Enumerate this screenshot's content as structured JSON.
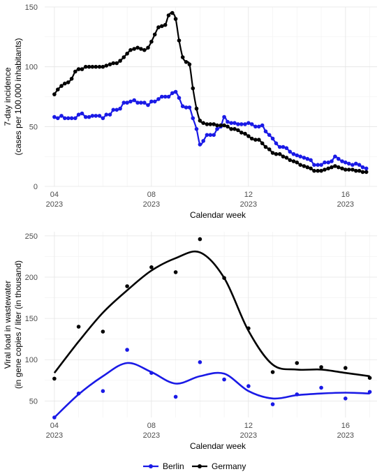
{
  "colors": {
    "Berlin": "#1a1ae6",
    "Germany": "#000000",
    "grid": "#e4e4e4"
  },
  "legend": {
    "items": [
      "Berlin",
      "Germany"
    ],
    "position": "bottom"
  },
  "chart_data": [
    {
      "type": "line",
      "xlabel": "Calendar week",
      "ylabel_line1": "7-day incidence",
      "ylabel_line2": "(cases per 100,000 inhabitants)",
      "xlim": [
        3.6,
        17.3
      ],
      "ylim": [
        0,
        150
      ],
      "x_ticks": [
        {
          "week": 4,
          "label": "04",
          "year": "2023"
        },
        {
          "week": 8,
          "label": "08",
          "year": "2023"
        },
        {
          "week": 12,
          "label": "12",
          "year": "2023"
        },
        {
          "week": 16,
          "label": "16",
          "year": "2023"
        }
      ],
      "y_ticks": [
        0,
        50,
        100,
        150
      ],
      "grid": true,
      "series": [
        {
          "name": "Berlin",
          "color": "#1a1ae6",
          "points": [
            [
              4.0,
              58
            ],
            [
              4.14,
              57
            ],
            [
              4.29,
              59
            ],
            [
              4.43,
              57
            ],
            [
              4.57,
              57
            ],
            [
              4.71,
              57
            ],
            [
              4.86,
              57
            ],
            [
              5.0,
              60
            ],
            [
              5.14,
              61
            ],
            [
              5.29,
              58
            ],
            [
              5.43,
              58
            ],
            [
              5.57,
              59
            ],
            [
              5.71,
              59
            ],
            [
              5.86,
              59
            ],
            [
              6.0,
              57
            ],
            [
              6.14,
              60
            ],
            [
              6.29,
              60
            ],
            [
              6.43,
              64
            ],
            [
              6.57,
              64
            ],
            [
              6.71,
              65
            ],
            [
              6.86,
              70
            ],
            [
              7.0,
              70
            ],
            [
              7.14,
              71
            ],
            [
              7.29,
              72
            ],
            [
              7.43,
              70
            ],
            [
              7.57,
              70
            ],
            [
              7.71,
              70
            ],
            [
              7.86,
              68
            ],
            [
              8.0,
              71
            ],
            [
              8.14,
              71
            ],
            [
              8.29,
              73
            ],
            [
              8.43,
              75
            ],
            [
              8.57,
              75
            ],
            [
              8.71,
              75
            ],
            [
              8.86,
              78
            ],
            [
              9.0,
              79
            ],
            [
              9.14,
              74
            ],
            [
              9.29,
              67
            ],
            [
              9.43,
              66
            ],
            [
              9.57,
              66
            ],
            [
              9.71,
              57
            ],
            [
              9.86,
              48
            ],
            [
              10.0,
              35
            ],
            [
              10.14,
              38
            ],
            [
              10.29,
              43
            ],
            [
              10.43,
              43
            ],
            [
              10.57,
              43
            ],
            [
              10.71,
              48
            ],
            [
              10.86,
              50
            ],
            [
              11.0,
              58
            ],
            [
              11.14,
              54
            ],
            [
              11.29,
              53
            ],
            [
              11.43,
              53
            ],
            [
              11.57,
              52
            ],
            [
              11.71,
              52
            ],
            [
              11.86,
              52
            ],
            [
              12.0,
              53
            ],
            [
              12.14,
              52
            ],
            [
              12.29,
              50
            ],
            [
              12.43,
              50
            ],
            [
              12.57,
              51
            ],
            [
              12.71,
              46
            ],
            [
              12.86,
              43
            ],
            [
              13.0,
              40
            ],
            [
              13.14,
              36
            ],
            [
              13.29,
              33
            ],
            [
              13.43,
              33
            ],
            [
              13.57,
              32
            ],
            [
              13.71,
              29
            ],
            [
              13.86,
              27
            ],
            [
              14.0,
              26
            ],
            [
              14.14,
              25
            ],
            [
              14.29,
              24
            ],
            [
              14.43,
              23
            ],
            [
              14.57,
              22
            ],
            [
              14.71,
              18
            ],
            [
              14.86,
              18
            ],
            [
              15.0,
              18
            ],
            [
              15.14,
              20
            ],
            [
              15.29,
              20
            ],
            [
              15.43,
              21
            ],
            [
              15.57,
              25
            ],
            [
              15.71,
              23
            ],
            [
              15.86,
              21
            ],
            [
              16.0,
              20
            ],
            [
              16.14,
              19
            ],
            [
              16.29,
              18
            ],
            [
              16.43,
              19
            ],
            [
              16.57,
              18
            ],
            [
              16.71,
              16
            ],
            [
              16.86,
              15
            ]
          ]
        },
        {
          "name": "Germany",
          "color": "#000000",
          "points": [
            [
              4.0,
              77
            ],
            [
              4.14,
              81
            ],
            [
              4.29,
              84
            ],
            [
              4.43,
              86
            ],
            [
              4.57,
              87
            ],
            [
              4.71,
              90
            ],
            [
              4.86,
              96
            ],
            [
              5.0,
              98
            ],
            [
              5.14,
              98
            ],
            [
              5.29,
              100
            ],
            [
              5.43,
              100
            ],
            [
              5.57,
              100
            ],
            [
              5.71,
              100
            ],
            [
              5.86,
              100
            ],
            [
              6.0,
              100
            ],
            [
              6.14,
              101
            ],
            [
              6.29,
              102
            ],
            [
              6.43,
              103
            ],
            [
              6.57,
              103
            ],
            [
              6.71,
              105
            ],
            [
              6.86,
              108
            ],
            [
              7.0,
              111
            ],
            [
              7.14,
              114
            ],
            [
              7.29,
              115
            ],
            [
              7.43,
              116
            ],
            [
              7.57,
              115
            ],
            [
              7.71,
              114
            ],
            [
              7.86,
              116
            ],
            [
              8.0,
              121
            ],
            [
              8.14,
              127
            ],
            [
              8.29,
              133
            ],
            [
              8.43,
              134
            ],
            [
              8.57,
              135
            ],
            [
              8.71,
              143
            ],
            [
              8.86,
              145
            ],
            [
              9.0,
              140
            ],
            [
              9.14,
              122
            ],
            [
              9.29,
              108
            ],
            [
              9.43,
              104
            ],
            [
              9.57,
              102
            ],
            [
              9.71,
              82
            ],
            [
              9.86,
              65
            ],
            [
              10.0,
              55
            ],
            [
              10.14,
              53
            ],
            [
              10.29,
              52
            ],
            [
              10.43,
              52
            ],
            [
              10.57,
              52
            ],
            [
              10.71,
              51
            ],
            [
              10.86,
              51
            ],
            [
              11.0,
              51
            ],
            [
              11.14,
              50
            ],
            [
              11.29,
              48
            ],
            [
              11.43,
              48
            ],
            [
              11.57,
              47
            ],
            [
              11.71,
              45
            ],
            [
              11.86,
              44
            ],
            [
              12.0,
              42
            ],
            [
              12.14,
              40
            ],
            [
              12.29,
              39
            ],
            [
              12.43,
              39
            ],
            [
              12.57,
              36
            ],
            [
              12.71,
              33
            ],
            [
              12.86,
              31
            ],
            [
              13.0,
              28
            ],
            [
              13.14,
              27
            ],
            [
              13.29,
              27
            ],
            [
              13.43,
              25
            ],
            [
              13.57,
              24
            ],
            [
              13.71,
              22
            ],
            [
              13.86,
              21
            ],
            [
              14.0,
              20
            ],
            [
              14.14,
              18
            ],
            [
              14.29,
              17
            ],
            [
              14.43,
              16
            ],
            [
              14.57,
              15
            ],
            [
              14.71,
              13
            ],
            [
              14.86,
              13
            ],
            [
              15.0,
              13
            ],
            [
              15.14,
              14
            ],
            [
              15.29,
              15
            ],
            [
              15.43,
              16
            ],
            [
              15.57,
              17
            ],
            [
              15.71,
              16
            ],
            [
              15.86,
              15
            ],
            [
              16.0,
              14
            ],
            [
              16.14,
              14
            ],
            [
              16.29,
              14
            ],
            [
              16.43,
              13
            ],
            [
              16.57,
              13
            ],
            [
              16.71,
              12
            ],
            [
              16.86,
              12
            ]
          ]
        }
      ]
    },
    {
      "type": "scatter",
      "xlabel": "Calendar week",
      "ylabel_line1": "Viral load in wastewater",
      "ylabel_line2": "(in gene copies / liter (in thousand)",
      "xlim": [
        3.6,
        17.3
      ],
      "ylim": [
        30,
        255
      ],
      "x_ticks": [
        {
          "week": 4,
          "label": "04",
          "year": "2023"
        },
        {
          "week": 8,
          "label": "08",
          "year": "2023"
        },
        {
          "week": 12,
          "label": "12",
          "year": "2023"
        },
        {
          "week": 16,
          "label": "16",
          "year": "2023"
        }
      ],
      "y_ticks": [
        50,
        100,
        150,
        200,
        250
      ],
      "grid": true,
      "series": [
        {
          "name": "Berlin",
          "color": "#1a1ae6",
          "points": [
            [
              4,
              30
            ],
            [
              5,
              59
            ],
            [
              6,
              62
            ],
            [
              7,
              112
            ],
            [
              8,
              84
            ],
            [
              9,
              55
            ],
            [
              10,
              97
            ],
            [
              11,
              76
            ],
            [
              12,
              68
            ],
            [
              13,
              46
            ],
            [
              14,
              58
            ],
            [
              15,
              66
            ],
            [
              16,
              53
            ],
            [
              17,
              61
            ]
          ],
          "smooth": [
            [
              4,
              30
            ],
            [
              5,
              58
            ],
            [
              6,
              80
            ],
            [
              7,
              96
            ],
            [
              8,
              85
            ],
            [
              9,
              71
            ],
            [
              10,
              80
            ],
            [
              11,
              83
            ],
            [
              12,
              62
            ],
            [
              13,
              53
            ],
            [
              14,
              57
            ],
            [
              15,
              59
            ],
            [
              16,
              60
            ],
            [
              17,
              59
            ]
          ]
        },
        {
          "name": "Germany",
          "color": "#000000",
          "points": [
            [
              4,
              77
            ],
            [
              5,
              140
            ],
            [
              6,
              134
            ],
            [
              7,
              189
            ],
            [
              8,
              212
            ],
            [
              9,
              206
            ],
            [
              10,
              246
            ],
            [
              11,
              199
            ],
            [
              12,
              138
            ],
            [
              13,
              85
            ],
            [
              14,
              96
            ],
            [
              15,
              91
            ],
            [
              16,
              90
            ],
            [
              17,
              78
            ]
          ],
          "smooth": [
            [
              4,
              84
            ],
            [
              5,
              122
            ],
            [
              6,
              157
            ],
            [
              7,
              184
            ],
            [
              8,
              208
            ],
            [
              9,
              223
            ],
            [
              10,
              230
            ],
            [
              11,
              199
            ],
            [
              12,
              135
            ],
            [
              13,
              94
            ],
            [
              14,
              88
            ],
            [
              15,
              88
            ],
            [
              16,
              84
            ],
            [
              17,
              80
            ]
          ]
        }
      ]
    }
  ]
}
